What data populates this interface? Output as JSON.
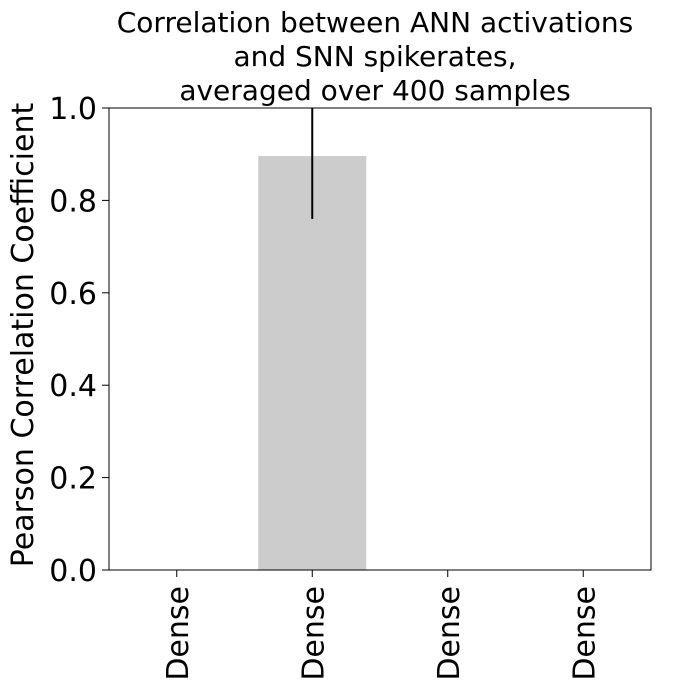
{
  "chart_data": {
    "type": "bar",
    "title_lines": [
      "Correlation between ANN activations",
      "and SNN spikerates,",
      "averaged over 400 samples"
    ],
    "xlabel": "",
    "ylabel": "Pearson Correlation Coefficient",
    "categories": [
      "Dense",
      "Dense",
      "Dense",
      "Dense"
    ],
    "values": [
      0.0,
      0.896,
      0.0,
      0.0
    ],
    "error_bars": [
      {
        "category_index": 1,
        "low": 0.76,
        "high": 1.0
      }
    ],
    "ylim": [
      0.0,
      1.0
    ],
    "yticks": [
      0.0,
      0.2,
      0.4,
      0.6,
      0.8,
      1.0
    ],
    "ytick_labels": [
      "0.0",
      "0.2",
      "0.4",
      "0.6",
      "0.8",
      "1.0"
    ],
    "grid": false,
    "bar_color": "#cccccc",
    "errorbar_color": "#000000"
  }
}
